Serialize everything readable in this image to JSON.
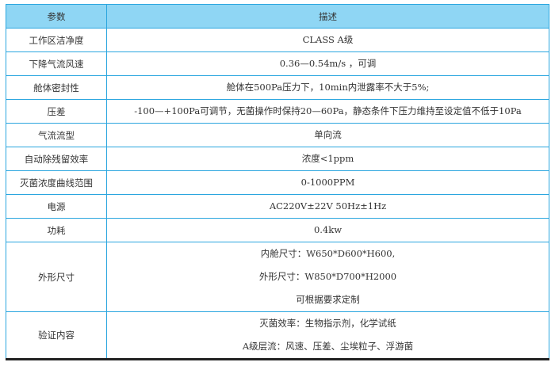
{
  "table": {
    "headers": [
      "参数",
      "描述"
    ],
    "rows": [
      {
        "param": "工作区洁净度",
        "desc": [
          "CLASS A级"
        ]
      },
      {
        "param": "下降气流风速",
        "desc": [
          "0.36—0.54m/s ，可调"
        ]
      },
      {
        "param": "舱体密封性",
        "desc": [
          "舱体在500Pa压力下，10min内泄露率不大于5%;"
        ]
      },
      {
        "param": "压差",
        "desc": [
          "-100—+100Pa可调节，无菌操作时保持20—60Pa，静态条件下压力维持至设定值不低于10Pa"
        ]
      },
      {
        "param": "气流流型",
        "desc": [
          "单向流"
        ]
      },
      {
        "param": "自动除残留效率",
        "desc": [
          "浓度<1ppm"
        ]
      },
      {
        "param": "灭菌浓度曲线范围",
        "desc": [
          "0-1000PPM"
        ]
      },
      {
        "param": "电源",
        "desc": [
          "AC220V±22V 50Hz±1Hz"
        ]
      },
      {
        "param": "功耗",
        "desc": [
          "0.4kw"
        ]
      },
      {
        "param": "外形尺寸",
        "desc": [
          "内舱尺寸：W650*D600*H600,",
          "外形尺寸：W850*D700*H2000",
          "可根据要求定制"
        ]
      },
      {
        "param": "验证内容",
        "desc": [
          "灭菌效率：生物指示剂，化学试纸",
          "A级层流：风速、压差、尘埃粒子、浮游菌"
        ]
      }
    ]
  },
  "colors": {
    "header_bg": "#8fd6f4",
    "border": "#2ba6df"
  }
}
